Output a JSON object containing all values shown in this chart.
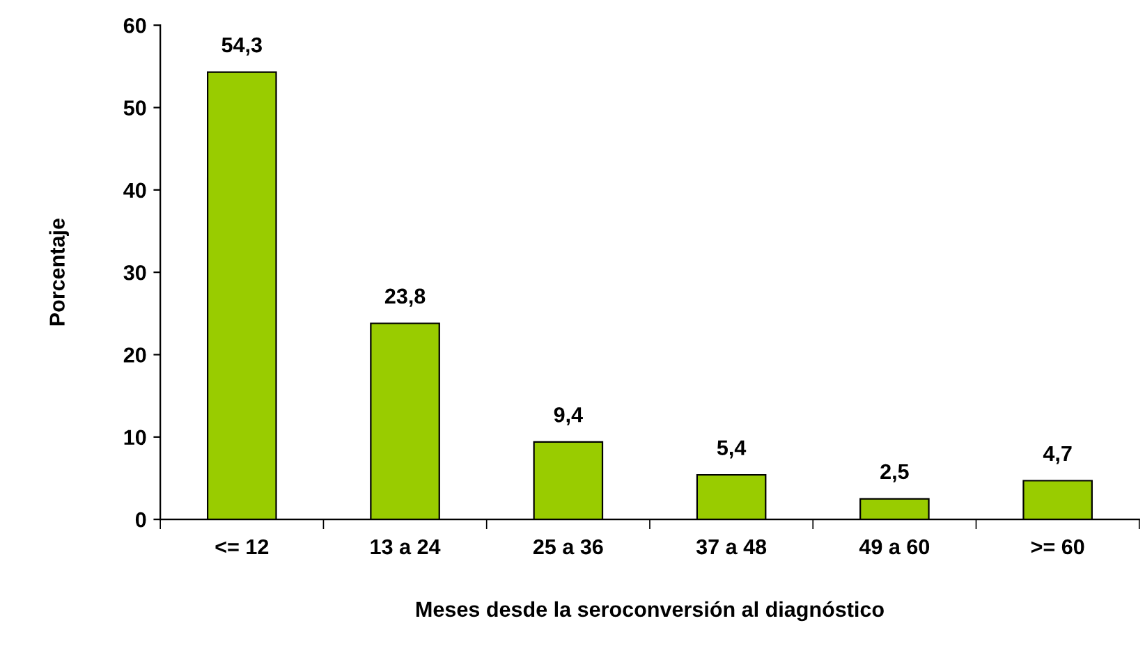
{
  "chart_data": {
    "type": "bar",
    "xlabel": "Meses desde la seroconversión al diagnóstico",
    "ylabel": "Porcentaje",
    "categories": [
      "<= 12",
      "13 a 24",
      "25 a 36",
      "37 a 48",
      "49 a 60",
      ">= 60"
    ],
    "values": [
      54.3,
      23.8,
      9.4,
      5.4,
      2.5,
      4.7
    ],
    "value_labels": [
      "54,3",
      "23,8",
      "9,4",
      "5,4",
      "2,5",
      "4,7"
    ],
    "color": "#99cc00",
    "ylim": [
      0,
      60
    ],
    "yticks": [
      0,
      10,
      20,
      30,
      40,
      50,
      60
    ],
    "grid": false
  }
}
